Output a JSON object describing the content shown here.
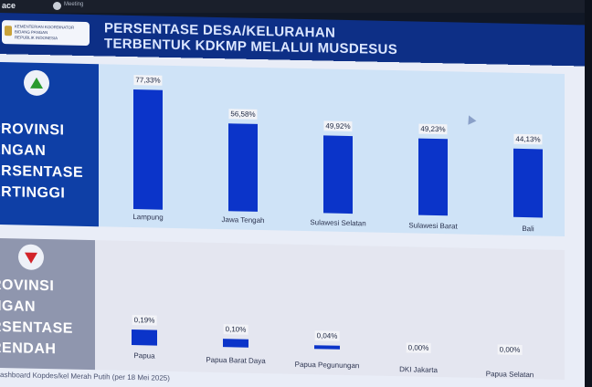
{
  "topbar": {
    "app_label": "ace",
    "meeting_label": "Meeting"
  },
  "logo": {
    "lines": [
      "KEMENTERIAN KOORDINATOR",
      "BIDANG PANGAN",
      "REPUBLIK INDONESIA"
    ]
  },
  "title": {
    "line1": "PERSENTASE DESA/KELURAHAN",
    "line2": "TERBENTUK KDKMP MELALUI MUSDESUS"
  },
  "top_panel": {
    "label": "PROVINSI\nENGAN\nERSENTASE\nERTINGGI",
    "icon": "triangle-up-icon",
    "accent": "#2a9a2e"
  },
  "bottom_panel": {
    "label": "ROVINSI\nNGAN\nRSENTASE\nRENDAH",
    "icon": "triangle-down-icon",
    "accent": "#d2232a"
  },
  "chart_data": [
    {
      "type": "bar",
      "title": "Provinsi dengan persentase tertinggi",
      "categories": [
        "Lampung",
        "Jawa Tengah",
        "Sulawesi Selatan",
        "Sulawesi Barat",
        "Bali"
      ],
      "values": [
        77.33,
        56.58,
        49.92,
        49.23,
        44.13
      ],
      "labels": [
        "77,33%",
        "56,58%",
        "49,92%",
        "49,23%",
        "44,13%"
      ],
      "ylim": [
        0,
        80
      ],
      "bar_color": "#0b34c9"
    },
    {
      "type": "bar",
      "title": "Provinsi dengan persentase rendah",
      "categories": [
        "Papua",
        "Papua Barat Daya",
        "Papua Pegunungan",
        "DKI Jakarta",
        "Papua Selatan"
      ],
      "values": [
        0.19,
        0.1,
        0.04,
        0.0,
        0.0
      ],
      "labels": [
        "0,19%",
        "0,10%",
        "0,04%",
        "0,00%",
        "0,00%"
      ],
      "ylim": [
        0,
        0.2
      ],
      "bar_color": "#0b34c9"
    }
  ],
  "footer": {
    "source": "ashboard Kopdes/kel Merah Putih (per 18 Mei 2025)"
  }
}
